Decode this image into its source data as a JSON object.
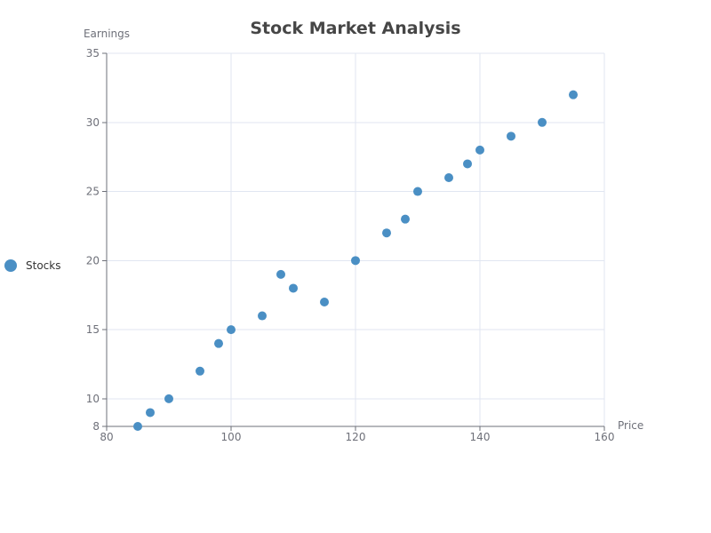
{
  "chart_data": {
    "type": "scatter",
    "title": "Stock Market Analysis",
    "xlabel": "Price",
    "ylabel": "Earnings",
    "xlim": [
      80,
      160
    ],
    "ylim": [
      8,
      35
    ],
    "x_ticks": [
      80,
      100,
      120,
      140,
      160
    ],
    "y_ticks": [
      8,
      10,
      15,
      20,
      25,
      30,
      35
    ],
    "grid": true,
    "legend_position": "left",
    "series": [
      {
        "name": "Stocks",
        "color": "#4a8fc4",
        "points": [
          {
            "x": 85,
            "y": 8
          },
          {
            "x": 87,
            "y": 9
          },
          {
            "x": 90,
            "y": 10
          },
          {
            "x": 95,
            "y": 12
          },
          {
            "x": 98,
            "y": 14
          },
          {
            "x": 100,
            "y": 15
          },
          {
            "x": 105,
            "y": 16
          },
          {
            "x": 108,
            "y": 19
          },
          {
            "x": 110,
            "y": 18
          },
          {
            "x": 115,
            "y": 17
          },
          {
            "x": 120,
            "y": 20
          },
          {
            "x": 125,
            "y": 22
          },
          {
            "x": 128,
            "y": 23
          },
          {
            "x": 130,
            "y": 25
          },
          {
            "x": 135,
            "y": 26
          },
          {
            "x": 138,
            "y": 27
          },
          {
            "x": 140,
            "y": 28
          },
          {
            "x": 145,
            "y": 29
          },
          {
            "x": 150,
            "y": 30
          },
          {
            "x": 155,
            "y": 32
          }
        ]
      }
    ]
  }
}
